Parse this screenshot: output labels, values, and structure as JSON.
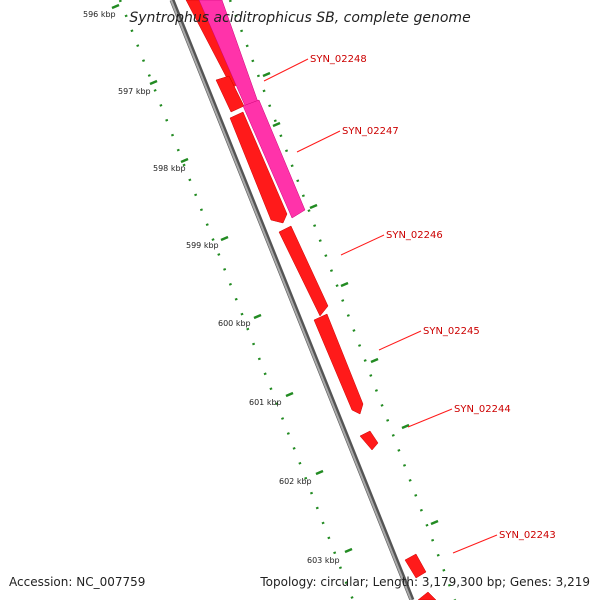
{
  "title": "Syntrophus aciditrophicus SB, complete genome",
  "accession": "Accession: NC_007759",
  "summary": "Topology: circular; Length: 3,179,300 bp; Genes: 3,219",
  "colors": {
    "background": "#ffffff",
    "backbone": "#888888",
    "gene_forward": "#ff1a1a",
    "gene_highlight": "#ff33aa",
    "gene_label": "#cc0000",
    "tick_major": "#228b22",
    "tick_minor": "#228b22"
  },
  "ticks": [
    {
      "label": "596 kbp"
    },
    {
      "label": "597 kbp"
    },
    {
      "label": "598 kbp"
    },
    {
      "label": "599 kbp"
    },
    {
      "label": "600 kbp"
    },
    {
      "label": "601 kbp"
    },
    {
      "label": "602 kbp"
    },
    {
      "label": "603 kbp"
    }
  ],
  "genes": [
    {
      "name": "SYN_02248"
    },
    {
      "name": "SYN_02247"
    },
    {
      "name": "SYN_02246"
    },
    {
      "name": "SYN_02245"
    },
    {
      "name": "SYN_02244"
    },
    {
      "name": "SYN_02243"
    }
  ]
}
